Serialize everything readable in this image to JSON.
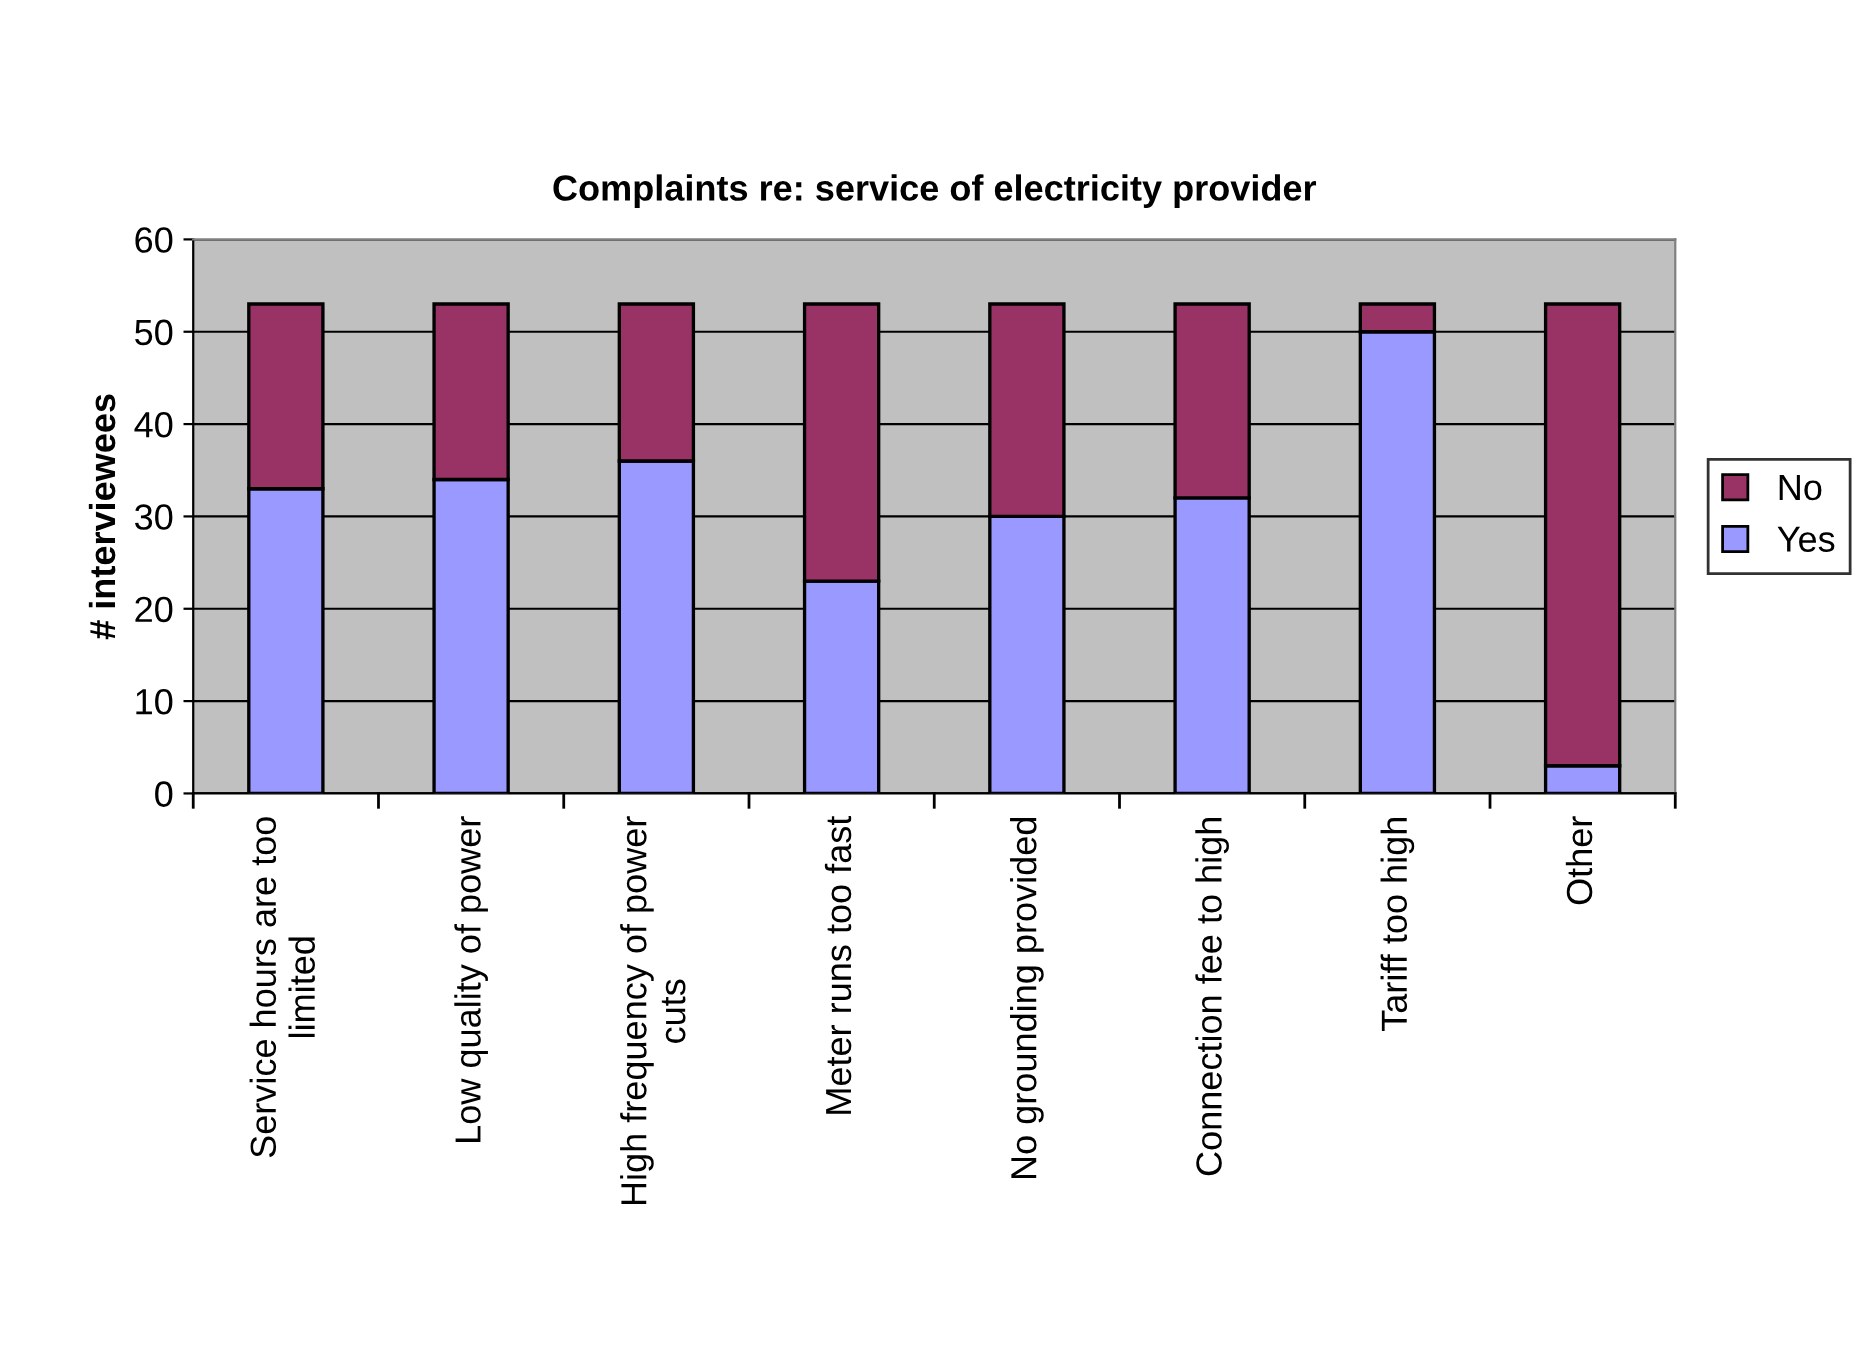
{
  "chart_data": {
    "type": "bar",
    "title": "Complaints re: service of electricity provider",
    "ylabel": "# interviewees",
    "categories": [
      "Service hours are too\nlimited",
      "Low quality of power",
      "High frequency of power\ncuts",
      "Meter runs too fast",
      "No grounding provided",
      "Connection fee to high",
      "Tariff too high",
      "Other"
    ],
    "series": [
      {
        "name": "Yes",
        "color": "#9999ff",
        "values": [
          33,
          34,
          36,
          23,
          30,
          32,
          50,
          3
        ]
      },
      {
        "name": "No",
        "color": "#993366",
        "values": [
          20,
          19,
          17,
          30,
          23,
          21,
          3,
          50
        ]
      }
    ],
    "stacked": true,
    "ylim": [
      0,
      60
    ],
    "yticks": [
      0,
      10,
      20,
      30,
      40,
      50,
      60
    ],
    "grid": "y",
    "legend": "right"
  }
}
